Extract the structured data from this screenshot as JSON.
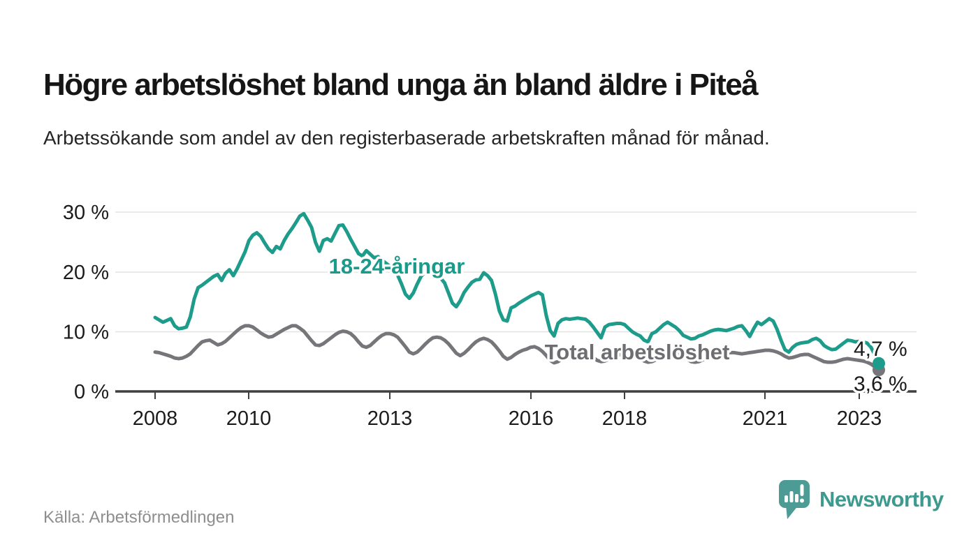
{
  "header": {
    "title": "Högre arbetslöshet bland unga än bland äldre i Piteå",
    "subtitle": "Arbetssökande som andel av den registerbaserade arbetskraften månad för månad."
  },
  "footer": {
    "source": "Källa: Arbetsförmedlingen",
    "brand": "Newsworthy"
  },
  "colors": {
    "youth_line": "#1E9C8B",
    "total_line": "#76767A",
    "youth_label": "#199A8A",
    "total_label": "#6E6E72",
    "axis": "#3F3F3F",
    "grid": "#E3E3E3",
    "brand": "#4C9B94"
  },
  "chart_data": {
    "type": "line",
    "title": "Högre arbetslöshet bland unga än bland äldre i Piteå",
    "subtitle": "Arbetssökande som andel av den registerbaserade arbetskraften månad för månad.",
    "xlabel": "",
    "ylabel": "",
    "x_start": "2008-01",
    "x_end": "2023-06",
    "x_interval": "monthly",
    "grid": "horizontal",
    "legend_position": "inline-labels",
    "ylim": [
      0,
      32
    ],
    "x_axis": {
      "ticks": [
        "2008",
        "2010",
        "2013",
        "2016",
        "2018",
        "2021",
        "2023"
      ]
    },
    "y_axis": {
      "tick_labels": [
        "30 %",
        "20 %",
        "10 %",
        "0 %"
      ]
    },
    "series": [
      {
        "name": "18-24-åringar",
        "color": "#1E9C8B",
        "end_label": "4,7 %",
        "end_value": 4.7,
        "values": [
          12.4,
          12.0,
          11.6,
          11.9,
          12.2,
          11.0,
          10.5,
          10.6,
          10.8,
          12.5,
          15.5,
          17.4,
          17.8,
          18.3,
          18.8,
          19.3,
          19.6,
          18.6,
          19.8,
          20.4,
          19.4,
          20.6,
          22.0,
          23.4,
          25.3,
          26.2,
          26.6,
          26.0,
          24.9,
          23.9,
          23.3,
          24.3,
          23.9,
          25.3,
          26.4,
          27.3,
          28.3,
          29.4,
          29.8,
          28.7,
          27.5,
          25.0,
          23.5,
          25.3,
          25.6,
          25.2,
          26.5,
          27.8,
          27.9,
          26.8,
          25.5,
          24.3,
          23.1,
          22.7,
          23.6,
          23.0,
          22.4,
          22.6,
          22.0,
          21.5,
          21.0,
          20.5,
          19.5,
          18.0,
          16.3,
          15.6,
          16.5,
          18.0,
          19.3,
          20.0,
          20.3,
          20.0,
          19.6,
          19.0,
          18.2,
          16.5,
          14.8,
          14.2,
          15.2,
          16.6,
          17.5,
          18.3,
          18.7,
          18.8,
          19.9,
          19.4,
          18.6,
          16.3,
          13.5,
          12.0,
          11.8,
          14.0,
          14.3,
          14.8,
          15.2,
          15.6,
          16.0,
          16.3,
          16.6,
          16.2,
          12.7,
          10.2,
          9.3,
          11.4,
          12.0,
          12.2,
          12.1,
          12.2,
          12.3,
          12.2,
          12.1,
          11.6,
          10.8,
          9.9,
          9.0,
          10.8,
          11.2,
          11.3,
          11.4,
          11.4,
          11.2,
          10.6,
          10.0,
          9.6,
          9.3,
          8.6,
          8.3,
          9.7,
          10.0,
          10.6,
          11.2,
          11.6,
          11.2,
          10.8,
          10.2,
          9.4,
          9.1,
          8.8,
          8.9,
          9.3,
          9.5,
          9.8,
          10.1,
          10.3,
          10.4,
          10.3,
          10.2,
          10.4,
          10.6,
          10.9,
          11.0,
          10.2,
          9.2,
          10.5,
          11.6,
          11.2,
          11.7,
          12.2,
          11.8,
          10.4,
          8.6,
          7.0,
          6.6,
          7.4,
          7.9,
          8.1,
          8.2,
          8.3,
          8.7,
          8.9,
          8.5,
          7.7,
          7.3,
          7.0,
          7.1,
          7.6,
          8.1,
          8.6,
          8.5,
          8.3,
          8.4,
          8.3,
          8.1,
          7.4,
          6.1,
          4.7
        ]
      },
      {
        "name": "Total arbetslöshet",
        "color": "#76767A",
        "end_label": "3,6 %",
        "end_value": 3.6,
        "values": [
          6.6,
          6.5,
          6.3,
          6.1,
          5.9,
          5.6,
          5.5,
          5.6,
          5.9,
          6.3,
          7.0,
          7.7,
          8.3,
          8.5,
          8.6,
          8.2,
          7.8,
          8.0,
          8.4,
          9.0,
          9.6,
          10.2,
          10.7,
          11.0,
          11.0,
          10.8,
          10.3,
          9.8,
          9.4,
          9.1,
          9.2,
          9.6,
          10.0,
          10.4,
          10.7,
          11.0,
          11.0,
          10.6,
          10.1,
          9.3,
          8.5,
          7.8,
          7.7,
          8.0,
          8.5,
          9.0,
          9.5,
          9.9,
          10.1,
          10.0,
          9.7,
          9.1,
          8.3,
          7.6,
          7.4,
          7.7,
          8.3,
          8.9,
          9.4,
          9.7,
          9.7,
          9.5,
          9.1,
          8.3,
          7.5,
          6.6,
          6.3,
          6.6,
          7.2,
          7.9,
          8.5,
          9.0,
          9.1,
          9.0,
          8.6,
          8.0,
          7.2,
          6.4,
          6.0,
          6.4,
          7.0,
          7.7,
          8.3,
          8.7,
          8.9,
          8.7,
          8.3,
          7.6,
          6.8,
          5.9,
          5.4,
          5.7,
          6.2,
          6.6,
          6.9,
          7.1,
          7.4,
          7.5,
          7.2,
          6.7,
          6.0,
          5.2,
          4.8,
          5.0,
          5.4,
          5.8,
          6.2,
          6.5,
          6.6,
          6.7,
          6.5,
          6.2,
          5.7,
          5.2,
          5.0,
          5.1,
          5.4,
          5.7,
          6.0,
          6.2,
          6.3,
          6.4,
          6.2,
          5.9,
          5.5,
          5.1,
          4.9,
          5.0,
          5.3,
          5.6,
          5.9,
          6.1,
          6.2,
          6.3,
          6.1,
          5.8,
          5.4,
          5.0,
          4.9,
          5.0,
          5.3,
          5.5,
          5.8,
          6.0,
          6.1,
          6.2,
          6.3,
          6.5,
          6.5,
          6.4,
          6.3,
          6.4,
          6.5,
          6.6,
          6.7,
          6.8,
          6.9,
          6.9,
          6.8,
          6.6,
          6.3,
          5.9,
          5.6,
          5.7,
          5.9,
          6.1,
          6.2,
          6.2,
          5.9,
          5.6,
          5.3,
          5.0,
          4.9,
          4.9,
          5.0,
          5.2,
          5.4,
          5.5,
          5.4,
          5.3,
          5.2,
          5.1,
          4.9,
          4.6,
          4.1,
          3.6
        ]
      }
    ]
  }
}
